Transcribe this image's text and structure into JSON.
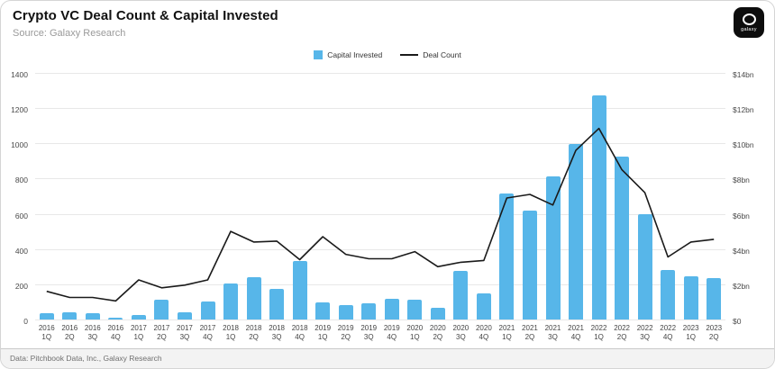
{
  "header": {
    "title": "Crypto VC Deal Count & Capital Invested",
    "subtitle": "Source: Galaxy Research",
    "logo_text": "galaxy"
  },
  "legend": {
    "items": [
      {
        "label": "Capital Invested",
        "color": "#57b6e9",
        "type": "bar"
      },
      {
        "label": "Deal Count",
        "color": "#1a1a1a",
        "type": "line"
      }
    ]
  },
  "footer": {
    "text": "Data: Pitchbook Data, Inc., Galaxy Research"
  },
  "chart_data": {
    "type": "bar",
    "subtype": "bar+line dual-axis",
    "title": "Crypto VC Deal Count & Capital Invested",
    "categories": [
      "2016 1Q",
      "2016 2Q",
      "2016 3Q",
      "2016 4Q",
      "2017 1Q",
      "2017 2Q",
      "2017 3Q",
      "2017 4Q",
      "2018 1Q",
      "2018 2Q",
      "2018 3Q",
      "2018 4Q",
      "2019 1Q",
      "2019 2Q",
      "2019 3Q",
      "2019 4Q",
      "2020 1Q",
      "2020 2Q",
      "2020 3Q",
      "2020 4Q",
      "2021 1Q",
      "2021 2Q",
      "2021 3Q",
      "2021 4Q",
      "2022 1Q",
      "2022 2Q",
      "2022 3Q",
      "2022 4Q",
      "2023 1Q",
      "2023 2Q"
    ],
    "series": [
      {
        "name": "Capital Invested",
        "type": "bar",
        "axis": "right",
        "unit": "$bn",
        "values": [
          0.35,
          0.4,
          0.35,
          0.1,
          0.25,
          1.1,
          0.4,
          1.0,
          2.05,
          2.4,
          1.75,
          3.3,
          0.95,
          0.8,
          0.9,
          1.2,
          1.1,
          0.65,
          2.75,
          1.5,
          7.15,
          6.2,
          8.1,
          9.95,
          12.7,
          9.25,
          6.0,
          2.8,
          2.45,
          2.35
        ]
      },
      {
        "name": "Deal Count",
        "type": "line",
        "axis": "left",
        "unit": "deals",
        "values": [
          160,
          125,
          125,
          105,
          225,
          180,
          195,
          225,
          500,
          440,
          445,
          340,
          470,
          370,
          345,
          345,
          385,
          300,
          325,
          335,
          690,
          710,
          650,
          960,
          1085,
          850,
          720,
          355,
          440,
          455
        ]
      }
    ],
    "left_axis": {
      "min": 0,
      "max": 1400,
      "step": 200
    },
    "right_axis": {
      "min": 0,
      "max": 14,
      "step": 2,
      "ticks": [
        "$0",
        "$2bn",
        "$4bn",
        "$6bn",
        "$8bn",
        "$10bn",
        "$12bn",
        "$14bn"
      ]
    },
    "grid": "horizontal",
    "legend_position": "top-center"
  }
}
